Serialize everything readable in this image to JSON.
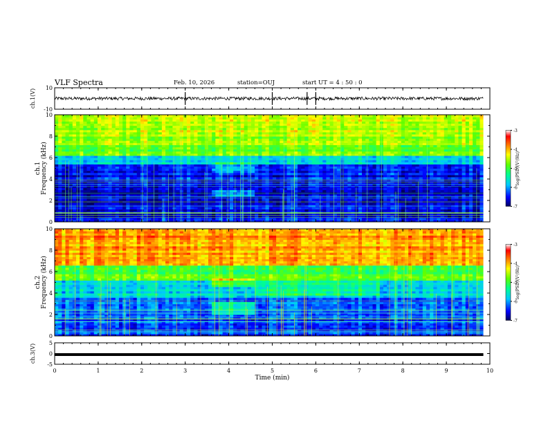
{
  "header": {
    "title": "VLF Spectra",
    "date": "Feb. 10, 2026",
    "station": "station=OUJ",
    "start_ut": "start UT =  4 : 50 : 0"
  },
  "chart_data": [
    {
      "type": "line",
      "title": "VLF Spectra",
      "ylabel": "ch.1(V)",
      "ylim": [
        -10,
        10
      ],
      "yticks": [
        10,
        -10
      ],
      "xlim": [
        0,
        10
      ],
      "description_values": {
        "baseline": 0,
        "typical_amplitude": 1.5,
        "spikes_at_min": [
          3.0,
          5.0,
          5.8,
          6.0
        ]
      }
    },
    {
      "type": "heatmap",
      "ylabel": "ch.1",
      "ylabel2": "Frequency (kHz)",
      "ylim": [
        0,
        10
      ],
      "yticks": [
        0,
        2,
        4,
        6,
        8,
        10
      ],
      "xlim": [
        0,
        10
      ],
      "data_end_min": 9.85,
      "colorbar": {
        "label": "log(PSD)(V²/Hz)",
        "range": [
          -7,
          -3
        ],
        "ticks": [
          -3,
          -4,
          -5,
          -6,
          -7
        ]
      }
    },
    {
      "type": "heatmap",
      "ylabel": "ch.2",
      "ylabel2": "Frequency (kHz)",
      "ylim": [
        0,
        10
      ],
      "yticks": [
        0,
        2,
        4,
        6,
        8,
        10
      ],
      "xlim": [
        0,
        10
      ],
      "data_end_min": 9.85,
      "colorbar": {
        "label": "log(PSD)(V²/Hz)",
        "range": [
          -7,
          -3
        ],
        "ticks": [
          -3,
          -4,
          -5,
          -6,
          -7
        ]
      }
    },
    {
      "type": "line",
      "ylabel": "ch.3(V)",
      "ylim": [
        -5,
        5
      ],
      "yticks": [
        5,
        0,
        -5
      ],
      "xlim": [
        0,
        10
      ],
      "level": -0.5
    }
  ],
  "xaxis": {
    "label": "Time (min)",
    "ticks": [
      0,
      1,
      2,
      3,
      4,
      5,
      6,
      7,
      8,
      9,
      10
    ]
  }
}
